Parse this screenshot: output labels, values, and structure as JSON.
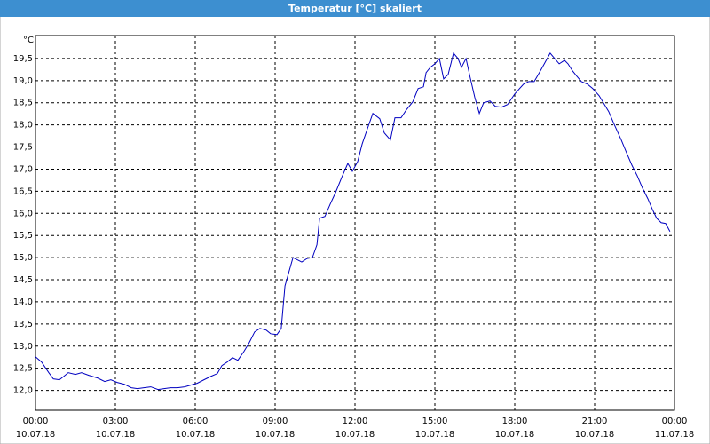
{
  "chart_data": {
    "type": "line",
    "title": "Temperatur [°C] skaliert",
    "ylabel": "°C",
    "x": [
      0,
      0.23,
      0.5,
      0.67,
      0.9,
      1.07,
      1.23,
      1.5,
      1.73,
      2,
      2.33,
      2.6,
      2.83,
      3.07,
      3.33,
      3.6,
      3.83,
      4.07,
      4.33,
      4.6,
      4.83,
      5.07,
      5.33,
      5.6,
      5.83,
      6.07,
      6.33,
      6.6,
      6.83,
      7,
      7.2,
      7.4,
      7.6,
      7.83,
      8.03,
      8.23,
      8.43,
      8.67,
      8.83,
      9.07,
      9.23,
      9.37,
      9.67,
      10,
      10.2,
      10.4,
      10.57,
      10.67,
      10.87,
      11.07,
      11.27,
      11.5,
      11.73,
      11.9,
      12.1,
      12.27,
      12.47,
      12.67,
      12.93,
      13.1,
      13.33,
      13.5,
      13.73,
      13.93,
      14.17,
      14.37,
      14.57,
      14.67,
      14.83,
      15,
      15.17,
      15.33,
      15.5,
      15.7,
      15.87,
      16,
      16.17,
      16.33,
      16.5,
      16.67,
      16.83,
      17.07,
      17.27,
      17.5,
      17.73,
      18,
      18.33,
      18.53,
      18.73,
      19,
      19.33,
      19.5,
      19.67,
      19.87,
      20,
      20.17,
      20.33,
      20.5,
      20.73,
      20.93,
      21.17,
      21.33,
      21.53,
      21.73,
      22,
      22.2,
      22.4,
      22.6,
      22.8,
      23,
      23.17,
      23.33,
      23.5,
      23.67,
      23.83
    ],
    "series": [
      {
        "name": "Temperatur",
        "color": "#0000c0",
        "values": [
          12.76,
          12.64,
          12.4,
          12.26,
          12.24,
          12.32,
          12.4,
          12.36,
          12.4,
          12.34,
          12.28,
          12.2,
          12.24,
          12.18,
          12.14,
          12.06,
          12.04,
          12.06,
          12.08,
          12.02,
          12.04,
          12.06,
          12.06,
          12.08,
          12.12,
          12.16,
          12.24,
          12.32,
          12.38,
          12.56,
          12.64,
          12.74,
          12.68,
          12.88,
          13.08,
          13.32,
          13.4,
          13.36,
          13.28,
          13.26,
          13.4,
          14.36,
          15.0,
          14.9,
          14.98,
          15.0,
          15.29,
          15.89,
          15.93,
          16.21,
          16.47,
          16.81,
          17.13,
          16.95,
          17.17,
          17.57,
          17.92,
          18.26,
          18.14,
          17.82,
          17.66,
          18.16,
          18.16,
          18.34,
          18.52,
          18.82,
          18.86,
          19.18,
          19.3,
          19.38,
          19.5,
          19.04,
          19.14,
          19.62,
          19.5,
          19.3,
          19.5,
          19.06,
          18.62,
          18.26,
          18.5,
          18.54,
          18.42,
          18.4,
          18.46,
          18.7,
          18.92,
          18.98,
          18.98,
          19.26,
          19.62,
          19.5,
          19.38,
          19.46,
          19.38,
          19.22,
          19.1,
          18.98,
          18.92,
          18.82,
          18.66,
          18.5,
          18.3,
          18.02,
          17.66,
          17.37,
          17.09,
          16.85,
          16.57,
          16.33,
          16.09,
          15.89,
          15.79,
          15.77,
          15.59
        ]
      }
    ],
    "xlim": [
      0,
      24
    ],
    "xticks": [
      {
        "value": 0,
        "label": "00:00"
      },
      {
        "value": 3,
        "label": "03:00"
      },
      {
        "value": 6,
        "label": "06:00"
      },
      {
        "value": 9,
        "label": "09:00"
      },
      {
        "value": 12,
        "label": "12:00"
      },
      {
        "value": 15,
        "label": "15:00"
      },
      {
        "value": 18,
        "label": "18:00"
      },
      {
        "value": 21,
        "label": "21:00"
      },
      {
        "value": 24,
        "label": "00:00"
      }
    ],
    "xtick_dates": [
      "10.07.18",
      "10.07.18",
      "10.07.18",
      "10.07.18",
      "10.07.18",
      "10.07.18",
      "10.07.18",
      "10.07.18",
      "11.07.18"
    ],
    "ylim": [
      11.55,
      20.02
    ],
    "yticks": [
      {
        "value": 12,
        "label": "12,0"
      },
      {
        "value": 12.5,
        "label": "12,5"
      },
      {
        "value": 13,
        "label": "13,0"
      },
      {
        "value": 13.5,
        "label": "13,5"
      },
      {
        "value": 14,
        "label": "14,0"
      },
      {
        "value": 14.5,
        "label": "14,5"
      },
      {
        "value": 15,
        "label": "15,0"
      },
      {
        "value": 15.5,
        "label": "15,5"
      },
      {
        "value": 16,
        "label": "16,0"
      },
      {
        "value": 16.5,
        "label": "16,5"
      },
      {
        "value": 17,
        "label": "17,0"
      },
      {
        "value": 17.5,
        "label": "17,5"
      },
      {
        "value": 18,
        "label": "18,0"
      },
      {
        "value": 18.5,
        "label": "18,5"
      },
      {
        "value": 19,
        "label": "19,0"
      },
      {
        "value": 19.5,
        "label": "19,5"
      }
    ],
    "grid": true
  }
}
